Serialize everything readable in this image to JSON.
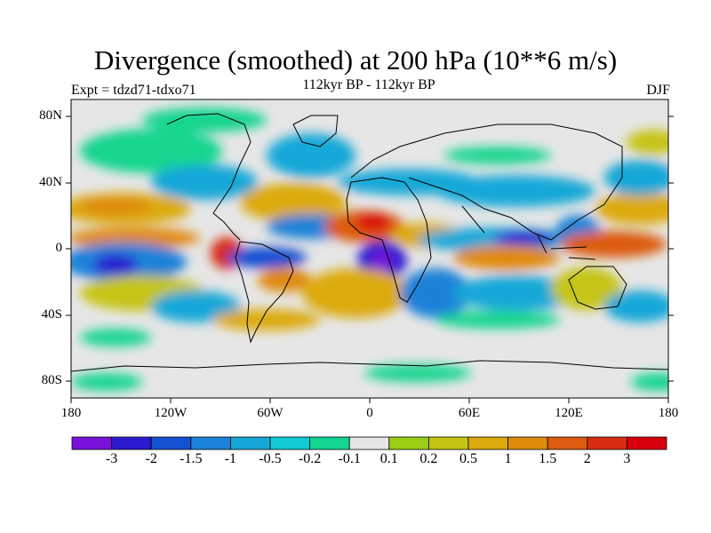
{
  "title": "Divergence (smoothed) at 200 hPa (10**6 m/s)",
  "subtitle": "112kyr BP - 112kyr BP",
  "experiment": "Expt = tdzd71-tdxo71",
  "season": "DJF",
  "lat_ticks": [
    "80N",
    "40N",
    "0",
    "40S",
    "80S"
  ],
  "lon_ticks": [
    "180",
    "120W",
    "60W",
    "0",
    "60E",
    "120E",
    "180"
  ],
  "colorbar": {
    "labels": [
      "-3",
      "-2",
      "-1.5",
      "-1",
      "-0.5",
      "-0.2",
      "-0.1",
      "0.1",
      "0.2",
      "0.5",
      "1",
      "1.5",
      "2",
      "3"
    ],
    "colors": [
      "#7a12dc",
      "#2a1ad0",
      "#1450d2",
      "#1a82d8",
      "#16a8d8",
      "#10cad4",
      "#12d68e",
      "#e6e6e6",
      "#9acd14",
      "#c6c412",
      "#dcaa0c",
      "#e08a0c",
      "#dc5c10",
      "#d82c10",
      "#d8000c"
    ]
  },
  "colors": {
    "ocean_neutral": "#e6e6e6",
    "coastline": "#000000"
  }
}
